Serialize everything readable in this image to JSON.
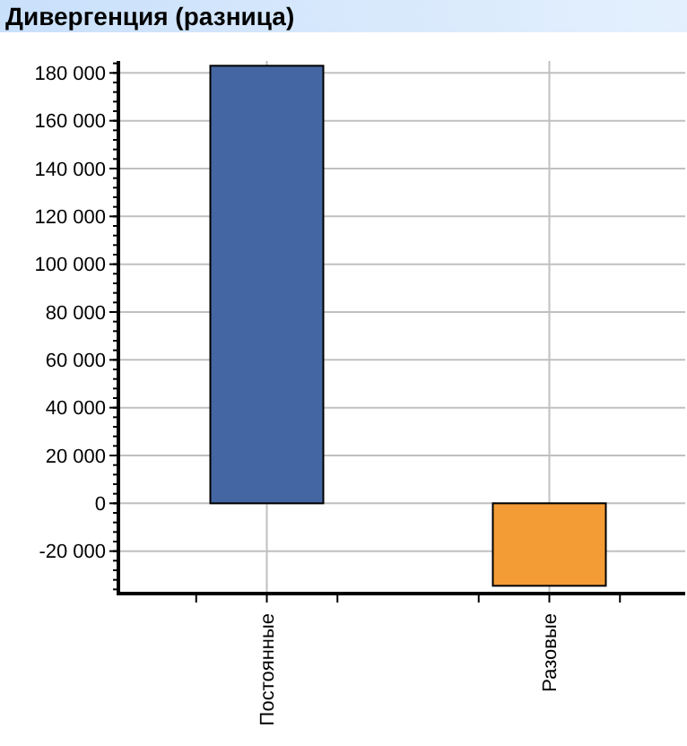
{
  "chart_data": {
    "type": "bar",
    "title": "Дивергенция (разница)",
    "categories": [
      "Постоянные",
      "Разовые"
    ],
    "values": [
      183000,
      -34500
    ],
    "colors": [
      "#4466a2",
      "#f39c36"
    ],
    "ylim": [
      -37000,
      185000
    ],
    "yticks": [
      {
        "value": -20000,
        "label": "-20 000"
      },
      0,
      {
        "value": 20000,
        "label": "20 000"
      },
      {
        "value": 40000,
        "label": "40 000"
      },
      {
        "value": 60000,
        "label": "60 000"
      },
      {
        "value": 80000,
        "label": "80 000"
      },
      {
        "value": 100000,
        "label": "100 000"
      },
      {
        "value": 120000,
        "label": "120 000"
      },
      {
        "value": 140000,
        "label": "140 000"
      },
      {
        "value": 160000,
        "label": "160 000"
      },
      {
        "value": 180000,
        "label": "180 000"
      }
    ],
    "grid": true
  }
}
